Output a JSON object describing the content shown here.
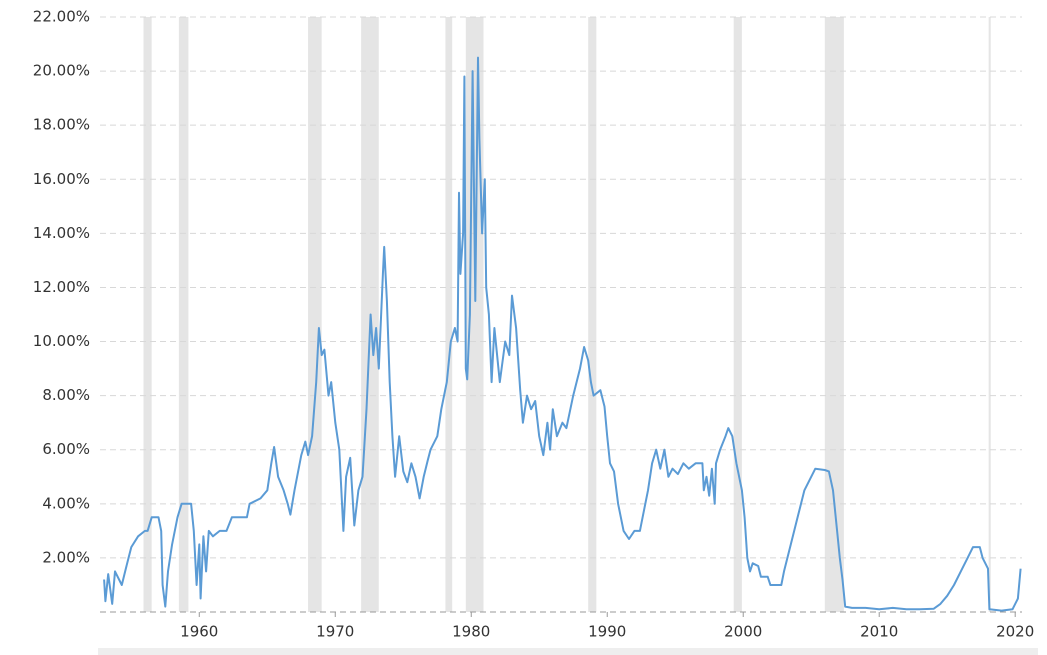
{
  "chart_data": {
    "type": "line",
    "color": "#5b9bd5",
    "grid": true,
    "band_color": "#e5e5e5",
    "xlim": [
      1952.7,
      2020.5
    ],
    "xticks": [
      1960,
      1970,
      1980,
      1990,
      2000,
      2010,
      2020
    ],
    "ylim": [
      0,
      22
    ],
    "yticks": [
      {
        "value": 2,
        "label": "2.00%"
      },
      {
        "value": 4,
        "label": "4.00%"
      },
      {
        "value": 6,
        "label": "6.00%"
      },
      {
        "value": 8,
        "label": "8.00%"
      },
      {
        "value": 10,
        "label": "10.00%"
      },
      {
        "value": 12,
        "label": "12.00%"
      },
      {
        "value": 14,
        "label": "14.00%"
      },
      {
        "value": 16,
        "label": "16.00%"
      },
      {
        "value": 18,
        "label": "18.00%"
      },
      {
        "value": 20,
        "label": "20.00%"
      },
      {
        "value": 22,
        "label": "22.00%"
      }
    ],
    "recessions": [
      [
        1955.9,
        1956.5
      ],
      [
        1958.5,
        1959.2
      ],
      [
        1968.0,
        1969.0
      ],
      [
        1971.9,
        1973.2
      ],
      [
        1978.1,
        1978.6
      ],
      [
        1979.6,
        1980.9
      ],
      [
        1988.6,
        1989.2
      ],
      [
        1999.3,
        1999.9
      ],
      [
        2006.0,
        2007.4
      ],
      [
        2018.05,
        2018.2
      ]
    ],
    "x": [
      1953.0,
      1953.1,
      1953.3,
      1953.6,
      1953.8,
      1954.3,
      1954.6,
      1955.0,
      1955.5,
      1956.0,
      1956.2,
      1956.5,
      1957.0,
      1957.2,
      1957.3,
      1957.5,
      1957.7,
      1958.0,
      1958.4,
      1958.7,
      1959.4,
      1959.6,
      1959.8,
      1960.0,
      1960.1,
      1960.3,
      1960.5,
      1960.7,
      1961.0,
      1961.5,
      1962.0,
      1962.4,
      1963.0,
      1963.5,
      1963.7,
      1964.5,
      1965.0,
      1965.3,
      1965.5,
      1965.8,
      1966.2,
      1966.5,
      1966.7,
      1967.0,
      1967.5,
      1967.8,
      1968.0,
      1968.3,
      1968.6,
      1968.8,
      1969.0,
      1969.2,
      1969.5,
      1969.7,
      1970.0,
      1970.3,
      1970.6,
      1970.8,
      1971.1,
      1971.4,
      1971.7,
      1972.0,
      1972.3,
      1972.6,
      1972.8,
      1973.0,
      1973.2,
      1973.5,
      1973.6,
      1973.8,
      1974.0,
      1974.2,
      1974.4,
      1974.7,
      1975.0,
      1975.3,
      1975.6,
      1975.9,
      1976.2,
      1976.5,
      1976.8,
      1977.0,
      1977.5,
      1977.8,
      1978.2,
      1978.5,
      1978.8,
      1979.0,
      1979.1,
      1979.2,
      1979.4,
      1979.5,
      1979.6,
      1979.7,
      1979.9,
      1980.1,
      1980.3,
      1980.5,
      1980.6,
      1980.8,
      1981.0,
      1981.1,
      1981.3,
      1981.5,
      1981.7,
      1981.9,
      1982.1,
      1982.5,
      1982.8,
      1983.0,
      1983.3,
      1983.6,
      1983.8,
      1984.1,
      1984.4,
      1984.7,
      1985.0,
      1985.3,
      1985.6,
      1985.8,
      1986.0,
      1986.3,
      1986.7,
      1987.0,
      1987.5,
      1988.0,
      1988.3,
      1988.6,
      1988.8,
      1989.0,
      1989.5,
      1989.8,
      1990.0,
      1990.2,
      1990.5,
      1990.8,
      1991.2,
      1991.6,
      1992.0,
      1992.4,
      1992.6,
      1993.0,
      1993.3,
      1993.6,
      1993.9,
      1994.2,
      1994.5,
      1994.8,
      1995.2,
      1995.6,
      1996.0,
      1996.5,
      1997.0,
      1997.1,
      1997.3,
      1997.5,
      1997.7,
      1997.9,
      1998.0,
      1998.3,
      1998.7,
      1998.9,
      1999.2,
      1999.5,
      1999.9,
      2000.1,
      2000.3,
      2000.5,
      2000.7,
      2001.1,
      2001.3,
      2001.8,
      2002.0,
      2002.8,
      2003.0,
      2003.5,
      2004.0,
      2004.5,
      2005.0,
      2005.3,
      2006.0,
      2006.3,
      2006.6,
      2006.9,
      2007.1,
      2007.3,
      2007.5,
      2008.0,
      2009.0,
      2010.0,
      2011.0,
      2012.0,
      2013.0,
      2014.0,
      2014.5,
      2015.0,
      2015.5,
      2016.0,
      2016.5,
      2016.9,
      2017.4,
      2017.6,
      2018.0,
      2018.1,
      2019.0,
      2019.8,
      2020.2,
      2020.4
    ],
    "values": [
      1.2,
      0.4,
      1.4,
      0.3,
      1.5,
      1.0,
      1.6,
      2.4,
      2.8,
      3.0,
      3.0,
      3.5,
      3.5,
      3.0,
      1.0,
      0.2,
      1.5,
      2.5,
      3.5,
      4.0,
      4.0,
      3.0,
      1.0,
      2.5,
      0.5,
      2.8,
      1.5,
      3.0,
      2.8,
      3.0,
      3.0,
      3.5,
      3.5,
      3.5,
      4.0,
      4.2,
      4.5,
      5.5,
      6.1,
      5.0,
      4.5,
      4.0,
      3.6,
      4.5,
      5.8,
      6.3,
      5.8,
      6.5,
      8.5,
      10.5,
      9.5,
      9.7,
      8.0,
      8.5,
      7.0,
      6.0,
      3.0,
      5.0,
      5.7,
      3.2,
      4.5,
      5.0,
      7.5,
      11.0,
      9.5,
      10.5,
      9.0,
      12.5,
      13.5,
      11.5,
      8.5,
      6.5,
      5.0,
      6.5,
      5.2,
      4.8,
      5.5,
      5.0,
      4.2,
      5.0,
      5.6,
      6.0,
      6.5,
      7.5,
      8.5,
      10.0,
      10.5,
      10.0,
      15.5,
      12.5,
      14.0,
      19.8,
      9.0,
      8.6,
      11.0,
      20.0,
      11.5,
      20.5,
      17.5,
      14.0,
      16.0,
      12.0,
      11.0,
      8.5,
      10.5,
      9.5,
      8.5,
      10.0,
      9.5,
      11.7,
      10.5,
      8.2,
      7.0,
      8.0,
      7.5,
      7.8,
      6.5,
      5.8,
      7.0,
      6.0,
      7.5,
      6.5,
      7.0,
      6.8,
      8.0,
      9.0,
      9.8,
      9.3,
      8.5,
      8.0,
      8.2,
      7.6,
      6.5,
      5.5,
      5.2,
      4.0,
      3.0,
      2.7,
      3.0,
      3.0,
      3.5,
      4.5,
      5.5,
      6.0,
      5.3,
      6.0,
      5.0,
      5.3,
      5.1,
      5.5,
      5.3,
      5.5,
      5.5,
      4.5,
      5.0,
      4.3,
      5.3,
      4.0,
      5.5,
      6.0,
      6.5,
      6.8,
      6.5,
      5.5,
      4.5,
      3.5,
      2.0,
      1.5,
      1.8,
      1.7,
      1.3,
      1.3,
      1.0,
      1.0,
      1.5,
      2.5,
      3.5,
      4.5,
      5.0,
      5.3,
      5.25,
      5.2,
      4.5,
      3.0,
      2.0,
      1.2,
      0.2,
      0.15,
      0.15,
      0.1,
      0.15,
      0.1,
      0.1,
      0.12,
      0.3,
      0.6,
      1.0,
      1.5,
      2.0,
      2.4,
      2.4,
      2.0,
      1.6,
      0.1,
      0.05,
      0.1,
      0.5,
      1.6
    ]
  }
}
